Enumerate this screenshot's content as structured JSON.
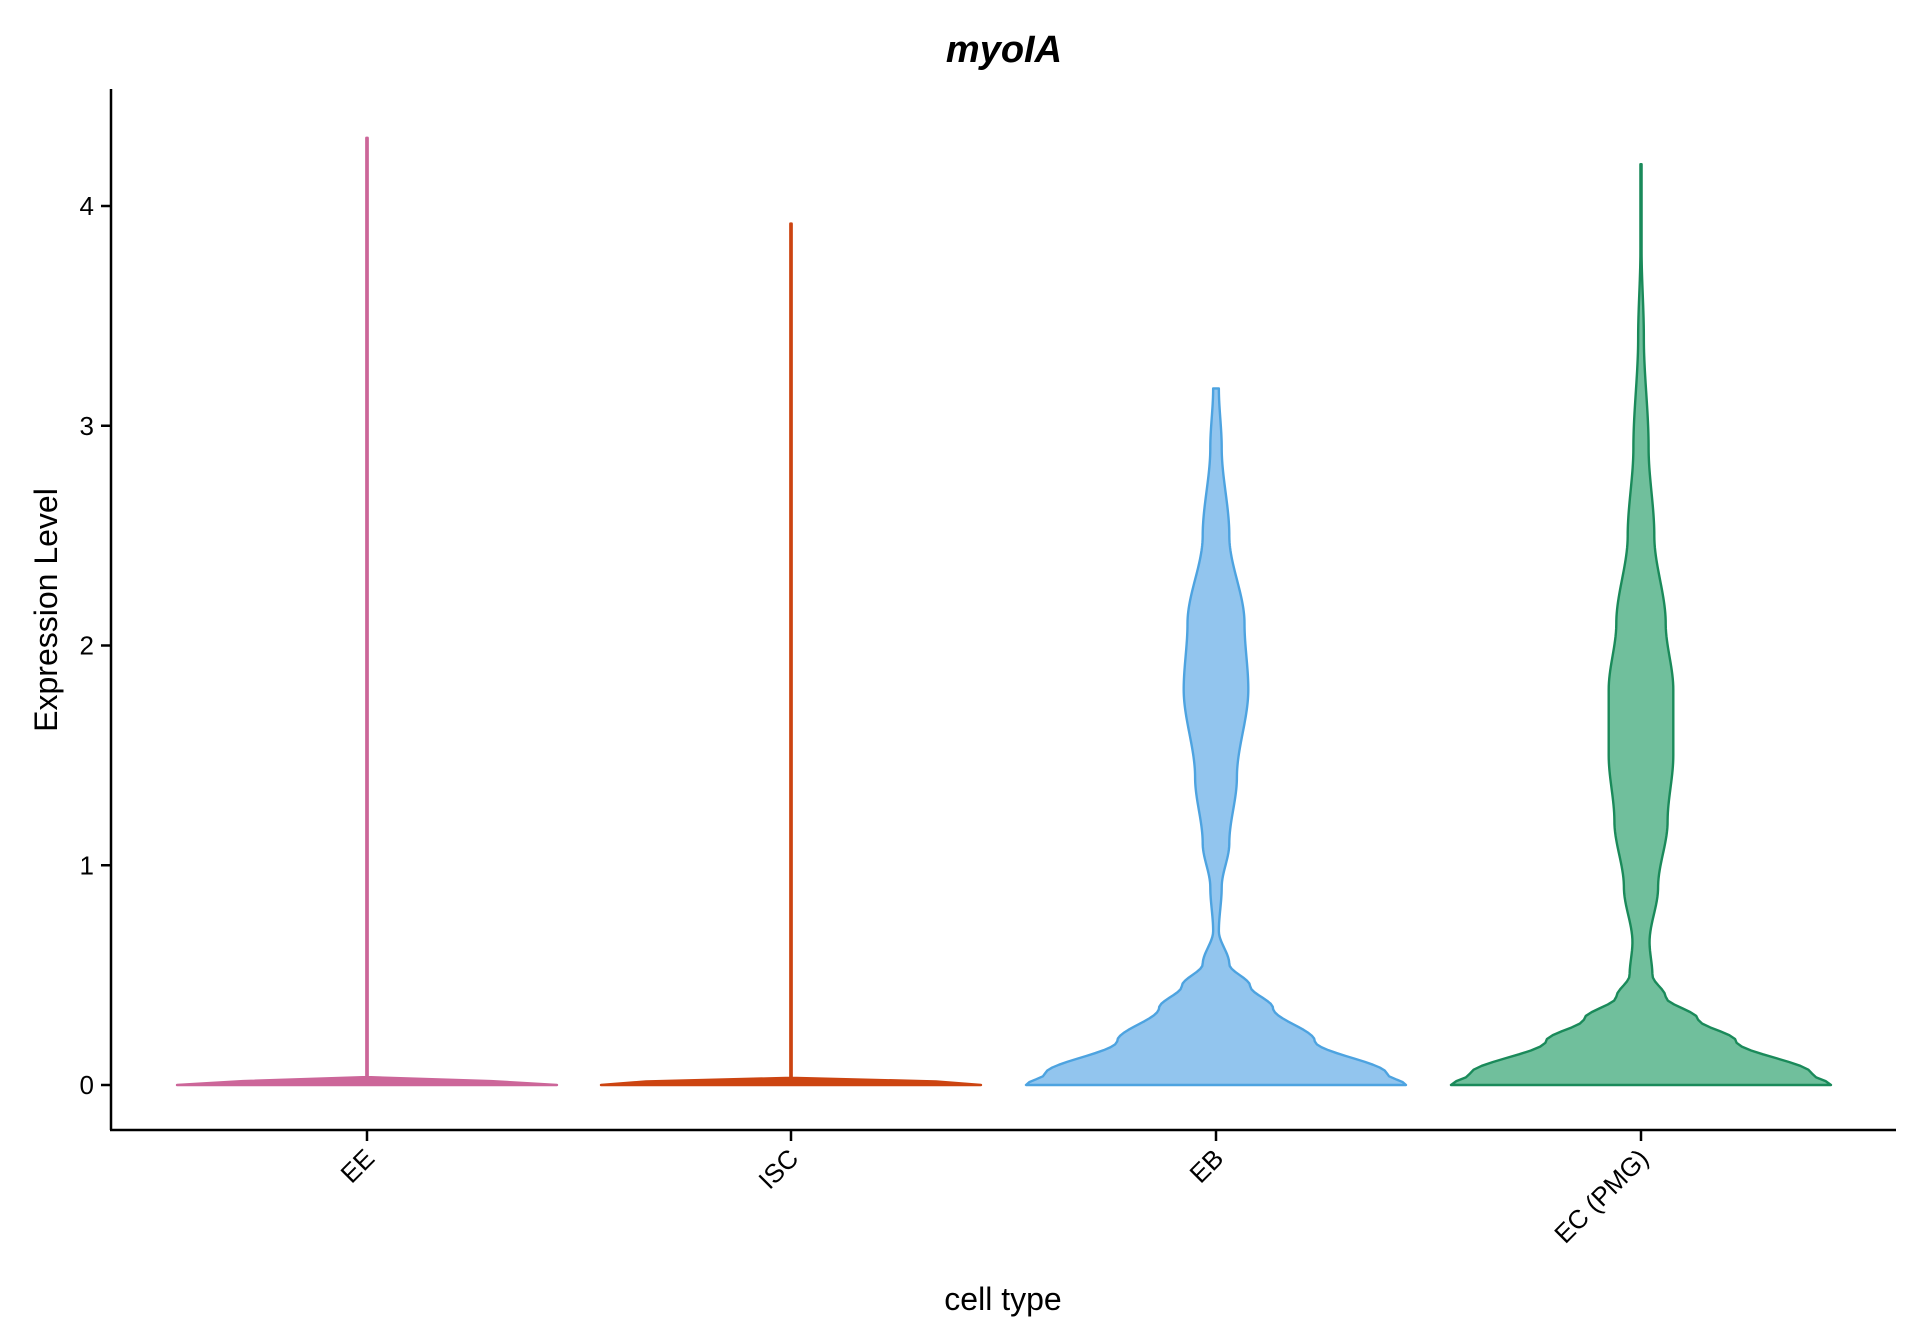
{
  "chart_data": {
    "type": "violin",
    "title": "myoIA",
    "xlabel": "cell type",
    "ylabel": "Expression Level",
    "ylim": [
      -0.2,
      4.55
    ],
    "yticks": [
      0,
      1,
      2,
      3,
      4
    ],
    "ytick_labels": [
      "0",
      "1",
      "2",
      "3",
      "4"
    ],
    "grid": false,
    "legend": "none",
    "categories": [
      "EE",
      "ISC",
      "EB",
      "EC (PMG)"
    ],
    "series": [
      {
        "category": "EE",
        "color": "#CC6699",
        "fill": "#CC6699",
        "max": 4.31,
        "profile": [
          [
            0,
            1.0
          ],
          [
            0.01,
            1.0
          ],
          [
            0.03,
            0.0035
          ],
          [
            0.3,
            0.0035
          ],
          [
            4.31,
            0.0035
          ]
        ]
      },
      {
        "category": "ISC",
        "color": "#CC4411",
        "fill": "#CC4411",
        "max": 3.92,
        "profile": [
          [
            0,
            1.0
          ],
          [
            0.01,
            1.0
          ],
          [
            0.03,
            0.0035
          ],
          [
            0.3,
            0.0035
          ],
          [
            3.92,
            0.0035
          ]
        ]
      },
      {
        "category": "EB",
        "color": "#4DA3E0",
        "fill": "#92C5EE",
        "max": 3.17,
        "profile": [
          [
            0,
            1.0
          ],
          [
            0.05,
            0.9
          ],
          [
            0.2,
            0.52
          ],
          [
            0.35,
            0.3
          ],
          [
            0.45,
            0.18
          ],
          [
            0.55,
            0.07
          ],
          [
            0.7,
            0.015
          ],
          [
            0.9,
            0.03
          ],
          [
            1.1,
            0.07
          ],
          [
            1.4,
            0.11
          ],
          [
            1.8,
            0.17
          ],
          [
            2.1,
            0.15
          ],
          [
            2.5,
            0.07
          ],
          [
            2.9,
            0.03
          ],
          [
            3.17,
            0.015
          ]
        ]
      },
      {
        "category": "EC (PMG)",
        "color": "#1A8A5A",
        "fill": "#70BF9C",
        "max": 4.19,
        "profile": [
          [
            0,
            1.0
          ],
          [
            0.05,
            0.9
          ],
          [
            0.2,
            0.5
          ],
          [
            0.3,
            0.3
          ],
          [
            0.4,
            0.13
          ],
          [
            0.5,
            0.06
          ],
          [
            0.65,
            0.045
          ],
          [
            0.9,
            0.09
          ],
          [
            1.2,
            0.14
          ],
          [
            1.5,
            0.17
          ],
          [
            1.8,
            0.17
          ],
          [
            2.1,
            0.13
          ],
          [
            2.5,
            0.07
          ],
          [
            2.9,
            0.04
          ],
          [
            3.4,
            0.015
          ],
          [
            3.8,
            0.003
          ],
          [
            4.19,
            0.003
          ]
        ]
      }
    ]
  }
}
